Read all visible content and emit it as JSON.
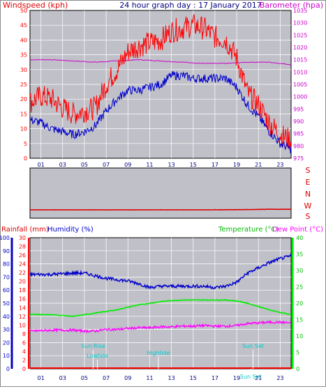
{
  "header": {
    "left": "Windspeed (kph)",
    "center": "24 hour graph day : 17 January 2017",
    "right": "Barometer (hpa)"
  },
  "colors": {
    "plot_bg": "#c0c0c8",
    "wind_gust": "#ff0000",
    "wind_avg": "#0000cc",
    "barometer": "#cc00cc",
    "wind_dir": "#dd0000",
    "humidity": "#0000cc",
    "temperature": "#00ee00",
    "dew_point": "#ff00ff",
    "rain": "#ff0000",
    "annotation": "#00cccc",
    "tick_blue": "#000080"
  },
  "labels": {
    "rainfall": "Rainfall (mm)",
    "humidity": "Humidity (%)",
    "temperature": "Temperature (°C)",
    "dew_point": "Dew Point (°C)",
    "compass": [
      "S",
      "E",
      "N",
      "W",
      "S"
    ],
    "x_ticks": [
      "01",
      "03",
      "05",
      "07",
      "09",
      "11",
      "13",
      "15",
      "17",
      "19",
      "21",
      "23"
    ],
    "events": [
      "Sun Rise",
      "Lowtide",
      "Hightide",
      "Sun Set",
      "Sun Set"
    ]
  },
  "chart_data": [
    {
      "type": "line",
      "title": "24 hour graph day : 17 January 2017",
      "x_range": [
        0,
        24
      ],
      "x_ticks": [
        1,
        3,
        5,
        7,
        9,
        11,
        13,
        15,
        17,
        19,
        21,
        23
      ],
      "ylabel": "Windspeed (kph)",
      "ylim": [
        0,
        50
      ],
      "y_ticks": [
        0,
        5,
        10,
        15,
        20,
        25,
        30,
        35,
        40,
        45,
        50
      ],
      "y2label": "Barometer (hpa)",
      "y2lim": [
        975,
        1035
      ],
      "y2_ticks": [
        975,
        980,
        985,
        990,
        995,
        1000,
        1005,
        1010,
        1015,
        1020,
        1025,
        1030,
        1035
      ],
      "grid": true,
      "series": [
        {
          "name": "Windspeed gust",
          "axis": "y",
          "x": [
            0,
            1,
            2,
            3,
            4,
            5,
            6,
            7,
            8,
            9,
            10,
            11,
            12,
            13,
            14,
            15,
            16,
            17,
            18,
            19,
            20,
            21,
            22,
            23,
            24
          ],
          "values": [
            19,
            21,
            20,
            17,
            15,
            16,
            17,
            25,
            30,
            36,
            38,
            39,
            40,
            43,
            44,
            45,
            44,
            41,
            40,
            34,
            22,
            18,
            12,
            8,
            6
          ]
        },
        {
          "name": "Windspeed average",
          "axis": "y",
          "x": [
            0,
            1,
            2,
            3,
            4,
            5,
            6,
            7,
            8,
            9,
            10,
            11,
            12,
            13,
            14,
            15,
            16,
            17,
            18,
            19,
            20,
            21,
            22,
            23,
            24
          ],
          "values": [
            13,
            12,
            10,
            9,
            8,
            9,
            11,
            16,
            20,
            23,
            23,
            24,
            25,
            28,
            28,
            27,
            27,
            27,
            27,
            24,
            18,
            14,
            9,
            5,
            3
          ]
        },
        {
          "name": "Barometer",
          "axis": "y2",
          "x": [
            0,
            2,
            4,
            6,
            8,
            10,
            12,
            14,
            16,
            18,
            20,
            22,
            24
          ],
          "values": [
            1015,
            1015,
            1014.5,
            1014,
            1014.5,
            1015,
            1014.5,
            1014,
            1013.5,
            1013.5,
            1014,
            1014,
            1013
          ]
        }
      ]
    },
    {
      "type": "line",
      "title": "",
      "ylabel": "",
      "x_range": [
        0,
        24
      ],
      "y_categories": [
        "S",
        "E",
        "N",
        "W",
        "S"
      ],
      "series": [
        {
          "name": "Wind direction",
          "x": [
            0,
            4,
            8,
            12,
            16,
            20,
            22,
            24
          ],
          "values": [
            0.18,
            0.18,
            0.18,
            0.18,
            0.18,
            0.19,
            0.2,
            0.2
          ]
        }
      ]
    },
    {
      "type": "line",
      "title": "",
      "x_range": [
        0,
        24
      ],
      "x_ticks": [
        1,
        3,
        5,
        7,
        9,
        11,
        13,
        15,
        17,
        19,
        21,
        23
      ],
      "ylabel": "Humidity (%)",
      "ylim": [
        0,
        100
      ],
      "y_ticks": [
        0,
        10,
        20,
        30,
        40,
        50,
        60,
        70,
        80,
        90,
        100
      ],
      "rain_axis": {
        "label": "Rainfall (mm)",
        "lim": [
          0,
          30
        ],
        "ticks": [
          0,
          2,
          4,
          6,
          8,
          10,
          12,
          14,
          16,
          18,
          20,
          22,
          24,
          26,
          28,
          30
        ]
      },
      "temp_axis": {
        "label": "Temperature (°C)",
        "lim": [
          0,
          40
        ],
        "ticks": [
          0,
          5,
          10,
          15,
          20,
          25,
          30,
          35,
          40
        ]
      },
      "grid": true,
      "series": [
        {
          "name": "Humidity",
          "axis": "humidity",
          "x": [
            0,
            2,
            4,
            5,
            6,
            7,
            8,
            9,
            10,
            11,
            12,
            13,
            14,
            15,
            16,
            17,
            18,
            19,
            20,
            21,
            22,
            23,
            24
          ],
          "values": [
            72,
            72,
            73,
            73,
            71,
            69,
            68,
            67,
            65,
            62,
            63,
            63,
            63,
            63,
            63,
            62,
            63,
            66,
            73,
            77,
            81,
            84,
            86
          ]
        },
        {
          "name": "Temperature",
          "axis": "temp",
          "x": [
            0,
            2,
            4,
            5,
            6,
            7,
            8,
            9,
            10,
            11,
            12,
            13,
            14,
            15,
            16,
            17,
            18,
            19,
            20,
            21,
            22,
            23,
            24
          ],
          "values": [
            16.6,
            16.5,
            16,
            16.5,
            17,
            17.5,
            18,
            18.8,
            19.5,
            20,
            20.5,
            20.8,
            21,
            21,
            21,
            21,
            21,
            20.7,
            20,
            19,
            18,
            17.2,
            16.5
          ]
        },
        {
          "name": "Dew Point",
          "axis": "temp",
          "x": [
            0,
            2,
            4,
            5,
            6,
            7,
            8,
            9,
            10,
            11,
            12,
            13,
            14,
            15,
            16,
            17,
            18,
            19,
            20,
            21,
            22,
            23,
            24
          ],
          "values": [
            11.5,
            11.8,
            11.8,
            11.5,
            11.5,
            12,
            12,
            12.3,
            12.5,
            12.5,
            12.8,
            12.8,
            13,
            13,
            13.2,
            13,
            13,
            13.2,
            13.8,
            14,
            14.2,
            14.2,
            14
          ]
        },
        {
          "name": "Rainfall",
          "axis": "rain",
          "x": [
            0,
            24
          ],
          "values": [
            0,
            0
          ]
        }
      ],
      "events": [
        {
          "label": "Sun Rise",
          "x": 5.8
        },
        {
          "label": "Lowtide",
          "x": 6.2
        },
        {
          "label": "Hightide",
          "x": 11.8
        },
        {
          "label": "Sun Set",
          "x": 20.5
        },
        {
          "label": "Sun Set",
          "x": 20.3
        }
      ]
    }
  ]
}
